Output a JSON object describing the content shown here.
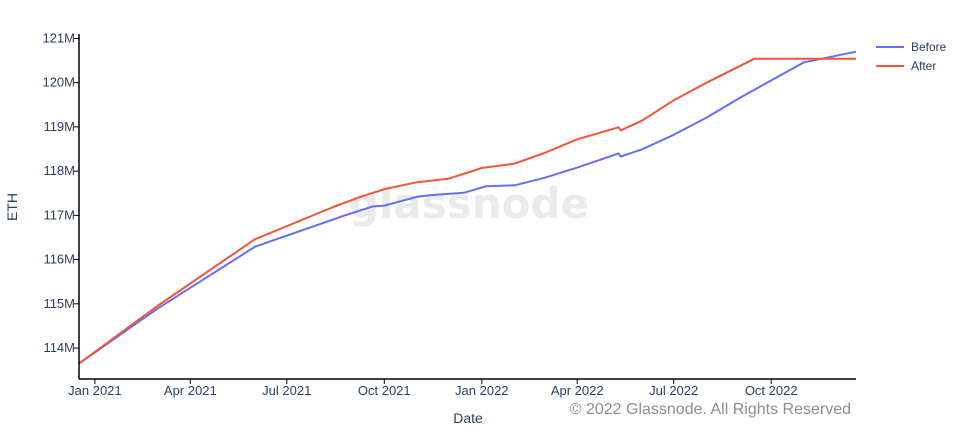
{
  "watermark": "glassnode",
  "copyright": "© 2022 Glassnode. All Rights Reserved",
  "chart_data": {
    "type": "line",
    "xlabel": "Date",
    "ylabel": "ETH",
    "x_ticks": [
      "Jan 2021",
      "Apr 2021",
      "Jul 2021",
      "Oct 2021",
      "Jan 2022",
      "Apr 2022",
      "Jul 2022",
      "Oct 2022"
    ],
    "y_ticks": [
      "114M",
      "115M",
      "116M",
      "117M",
      "118M",
      "119M",
      "120M",
      "121M"
    ],
    "y_tick_values": [
      114,
      115,
      116,
      117,
      118,
      119,
      120,
      121
    ],
    "ylim": [
      113.3,
      121.1
    ],
    "xlim": [
      "2020-12-17",
      "2022-12-20"
    ],
    "y_unit": "M ETH",
    "legend_position": "top-right",
    "series": [
      {
        "name": "Before",
        "color": "#636efa",
        "points": [
          [
            "2020-12-17",
            113.65
          ],
          [
            "2021-03-01",
            114.89
          ],
          [
            "2021-06-01",
            116.29
          ],
          [
            "2021-08-25",
            117.0
          ],
          [
            "2021-09-20",
            117.2
          ],
          [
            "2021-10-01",
            117.22
          ],
          [
            "2021-11-01",
            117.42
          ],
          [
            "2021-11-15",
            117.46
          ],
          [
            "2021-12-15",
            117.51
          ],
          [
            "2022-01-05",
            117.66
          ],
          [
            "2022-02-01",
            117.68
          ],
          [
            "2022-03-01",
            117.85
          ],
          [
            "2022-04-01",
            118.08
          ],
          [
            "2022-05-10",
            118.4
          ],
          [
            "2022-05-12",
            118.33
          ],
          [
            "2022-06-01",
            118.49
          ],
          [
            "2022-07-01",
            118.82
          ],
          [
            "2022-08-01",
            119.21
          ],
          [
            "2022-09-01",
            119.65
          ],
          [
            "2022-10-01",
            120.05
          ],
          [
            "2022-11-01",
            120.46
          ],
          [
            "2022-12-20",
            120.7
          ]
        ]
      },
      {
        "name": "After",
        "color": "#ef553b",
        "points": [
          [
            "2020-12-17",
            113.65
          ],
          [
            "2021-03-01",
            114.95
          ],
          [
            "2021-06-01",
            116.46
          ],
          [
            "2021-08-15",
            117.2
          ],
          [
            "2021-09-10",
            117.43
          ],
          [
            "2021-10-01",
            117.59
          ],
          [
            "2021-11-01",
            117.75
          ],
          [
            "2021-12-01",
            117.83
          ],
          [
            "2022-01-01",
            118.07
          ],
          [
            "2022-02-01",
            118.17
          ],
          [
            "2022-03-01",
            118.41
          ],
          [
            "2022-04-01",
            118.72
          ],
          [
            "2022-05-10",
            118.99
          ],
          [
            "2022-05-12",
            118.92
          ],
          [
            "2022-06-01",
            119.14
          ],
          [
            "2022-07-01",
            119.6
          ],
          [
            "2022-08-01",
            120.0
          ],
          [
            "2022-09-15",
            120.54
          ],
          [
            "2022-10-01",
            120.54
          ],
          [
            "2022-12-20",
            120.54
          ]
        ]
      }
    ]
  }
}
